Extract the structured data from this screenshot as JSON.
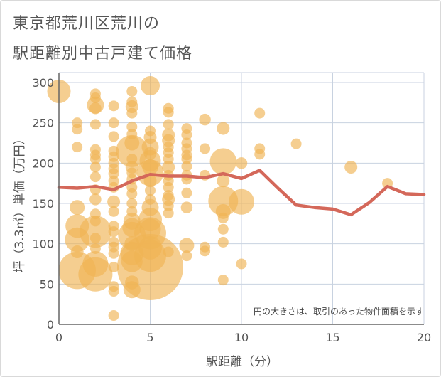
{
  "header": {
    "title_line1": "東京都荒川区荒川の",
    "title_line2": "駅距離別中古戸建て価格"
  },
  "colors": {
    "bubble": "#f0b455",
    "line": "#d4685a",
    "grid": "#c8d2e0",
    "axis": "#666666"
  },
  "chart_data": {
    "type": "scatter",
    "title": "東京都荒川区荒川の駅距離別中古戸建て価格",
    "xlabel": "駅距離（分）",
    "ylabel": "坪（3.3㎡）単価（万円）",
    "xlim": [
      0,
      20
    ],
    "ylim": [
      0,
      310
    ],
    "xticks": [
      0,
      5,
      10,
      15,
      20
    ],
    "yticks": [
      0,
      50,
      100,
      150,
      200,
      250,
      300
    ],
    "grid": true,
    "annotation": "円の大きさは、取引のあった物件面積を示す",
    "bubbles": [
      {
        "x": 0,
        "y": 289,
        "s": 2.2
      },
      {
        "x": 1,
        "y": 250,
        "s": 1
      },
      {
        "x": 1,
        "y": 242,
        "s": 1
      },
      {
        "x": 1,
        "y": 220,
        "s": 1
      },
      {
        "x": 1,
        "y": 145,
        "s": 1.4
      },
      {
        "x": 1,
        "y": 122,
        "s": 2.2
      },
      {
        "x": 1,
        "y": 105,
        "s": 2.3
      },
      {
        "x": 1,
        "y": 90,
        "s": 1.2
      },
      {
        "x": 1,
        "y": 67,
        "s": 3.5
      },
      {
        "x": 2,
        "y": 286,
        "s": 1
      },
      {
        "x": 2,
        "y": 281,
        "s": 1
      },
      {
        "x": 2,
        "y": 272,
        "s": 1.6
      },
      {
        "x": 2,
        "y": 268,
        "s": 1.1
      },
      {
        "x": 2,
        "y": 248,
        "s": 1
      },
      {
        "x": 2,
        "y": 217,
        "s": 1
      },
      {
        "x": 2,
        "y": 210,
        "s": 1
      },
      {
        "x": 2,
        "y": 205,
        "s": 1
      },
      {
        "x": 2,
        "y": 195,
        "s": 1
      },
      {
        "x": 2,
        "y": 183,
        "s": 1
      },
      {
        "x": 2,
        "y": 167,
        "s": 1
      },
      {
        "x": 2,
        "y": 155,
        "s": 1.1
      },
      {
        "x": 2,
        "y": 137,
        "s": 1
      },
      {
        "x": 2,
        "y": 128,
        "s": 1
      },
      {
        "x": 2,
        "y": 115,
        "s": 3.0
      },
      {
        "x": 2,
        "y": 107,
        "s": 1
      },
      {
        "x": 2,
        "y": 94,
        "s": 1
      },
      {
        "x": 2,
        "y": 75,
        "s": 2.4
      },
      {
        "x": 2,
        "y": 62,
        "s": 3.2
      },
      {
        "x": 3,
        "y": 271,
        "s": 1
      },
      {
        "x": 3,
        "y": 250,
        "s": 1
      },
      {
        "x": 3,
        "y": 233,
        "s": 1
      },
      {
        "x": 3,
        "y": 215,
        "s": 1
      },
      {
        "x": 3,
        "y": 208,
        "s": 1
      },
      {
        "x": 3,
        "y": 200,
        "s": 1
      },
      {
        "x": 3,
        "y": 193,
        "s": 1
      },
      {
        "x": 3,
        "y": 187,
        "s": 1
      },
      {
        "x": 3,
        "y": 178,
        "s": 1
      },
      {
        "x": 3,
        "y": 170,
        "s": 1
      },
      {
        "x": 3,
        "y": 152,
        "s": 1.2
      },
      {
        "x": 3,
        "y": 140,
        "s": 1
      },
      {
        "x": 3,
        "y": 122,
        "s": 1
      },
      {
        "x": 3,
        "y": 115,
        "s": 1
      },
      {
        "x": 3,
        "y": 102,
        "s": 1
      },
      {
        "x": 3,
        "y": 96,
        "s": 1
      },
      {
        "x": 3,
        "y": 88,
        "s": 1
      },
      {
        "x": 3,
        "y": 71,
        "s": 1
      },
      {
        "x": 3,
        "y": 47,
        "s": 1
      },
      {
        "x": 3,
        "y": 41,
        "s": 1
      },
      {
        "x": 3,
        "y": 11,
        "s": 1
      },
      {
        "x": 4,
        "y": 289,
        "s": 1
      },
      {
        "x": 4,
        "y": 276,
        "s": 1
      },
      {
        "x": 4,
        "y": 270,
        "s": 1.2
      },
      {
        "x": 4,
        "y": 262,
        "s": 1
      },
      {
        "x": 4,
        "y": 245,
        "s": 1
      },
      {
        "x": 4,
        "y": 236,
        "s": 1
      },
      {
        "x": 4,
        "y": 225,
        "s": 1.4
      },
      {
        "x": 4,
        "y": 215,
        "s": 3.0
      },
      {
        "x": 4,
        "y": 205,
        "s": 1
      },
      {
        "x": 4,
        "y": 195,
        "s": 1.2
      },
      {
        "x": 4,
        "y": 188,
        "s": 1
      },
      {
        "x": 4,
        "y": 180,
        "s": 1
      },
      {
        "x": 4,
        "y": 170,
        "s": 1
      },
      {
        "x": 4,
        "y": 162,
        "s": 1
      },
      {
        "x": 4,
        "y": 150,
        "s": 1
      },
      {
        "x": 4,
        "y": 140,
        "s": 1
      },
      {
        "x": 4,
        "y": 128,
        "s": 1.6
      },
      {
        "x": 4,
        "y": 120,
        "s": 1.8
      },
      {
        "x": 4,
        "y": 110,
        "s": 2.6
      },
      {
        "x": 4,
        "y": 100,
        "s": 1.4
      },
      {
        "x": 4,
        "y": 88,
        "s": 2.2
      },
      {
        "x": 4,
        "y": 78,
        "s": 2.0
      },
      {
        "x": 4,
        "y": 52,
        "s": 1.3
      },
      {
        "x": 4,
        "y": 43,
        "s": 1.6
      },
      {
        "x": 5,
        "y": 296,
        "s": 1.8
      },
      {
        "x": 5,
        "y": 240,
        "s": 1
      },
      {
        "x": 5,
        "y": 232,
        "s": 1.2
      },
      {
        "x": 5,
        "y": 220,
        "s": 1.6
      },
      {
        "x": 5,
        "y": 212,
        "s": 1.2
      },
      {
        "x": 5,
        "y": 203,
        "s": 2.0
      },
      {
        "x": 5,
        "y": 195,
        "s": 1.5
      },
      {
        "x": 5,
        "y": 188,
        "s": 2.5
      },
      {
        "x": 5,
        "y": 178,
        "s": 1.2
      },
      {
        "x": 5,
        "y": 166,
        "s": 1
      },
      {
        "x": 5,
        "y": 155,
        "s": 1
      },
      {
        "x": 5,
        "y": 145,
        "s": 1.6
      },
      {
        "x": 5,
        "y": 130,
        "s": 2.2
      },
      {
        "x": 5,
        "y": 118,
        "s": 2.0
      },
      {
        "x": 5,
        "y": 113,
        "s": 3.0
      },
      {
        "x": 5,
        "y": 95,
        "s": 2.2
      },
      {
        "x": 5,
        "y": 85,
        "s": 3.0
      },
      {
        "x": 5,
        "y": 71,
        "s": 6.2
      },
      {
        "x": 6,
        "y": 268,
        "s": 1
      },
      {
        "x": 6,
        "y": 263,
        "s": 1
      },
      {
        "x": 6,
        "y": 248,
        "s": 1
      },
      {
        "x": 6,
        "y": 235,
        "s": 1.2
      },
      {
        "x": 6,
        "y": 228,
        "s": 1.2
      },
      {
        "x": 6,
        "y": 220,
        "s": 1
      },
      {
        "x": 6,
        "y": 213,
        "s": 1
      },
      {
        "x": 6,
        "y": 205,
        "s": 1
      },
      {
        "x": 6,
        "y": 195,
        "s": 1.2
      },
      {
        "x": 6,
        "y": 185,
        "s": 1
      },
      {
        "x": 6,
        "y": 178,
        "s": 1
      },
      {
        "x": 6,
        "y": 170,
        "s": 1
      },
      {
        "x": 6,
        "y": 160,
        "s": 1
      },
      {
        "x": 6,
        "y": 155,
        "s": 1.2
      },
      {
        "x": 6,
        "y": 147,
        "s": 1
      },
      {
        "x": 6,
        "y": 138,
        "s": 1
      },
      {
        "x": 6,
        "y": 90,
        "s": 1
      },
      {
        "x": 7,
        "y": 243,
        "s": 1
      },
      {
        "x": 7,
        "y": 235,
        "s": 1
      },
      {
        "x": 7,
        "y": 225,
        "s": 1
      },
      {
        "x": 7,
        "y": 218,
        "s": 1
      },
      {
        "x": 7,
        "y": 210,
        "s": 1
      },
      {
        "x": 7,
        "y": 205,
        "s": 1
      },
      {
        "x": 7,
        "y": 196,
        "s": 1
      },
      {
        "x": 7,
        "y": 185,
        "s": 1
      },
      {
        "x": 7,
        "y": 180,
        "s": 1
      },
      {
        "x": 7,
        "y": 163,
        "s": 1
      },
      {
        "x": 7,
        "y": 145,
        "s": 1.1
      },
      {
        "x": 7,
        "y": 98,
        "s": 1.4
      },
      {
        "x": 7,
        "y": 85,
        "s": 1
      },
      {
        "x": 8,
        "y": 254,
        "s": 1.1
      },
      {
        "x": 8,
        "y": 218,
        "s": 1
      },
      {
        "x": 8,
        "y": 185,
        "s": 1
      },
      {
        "x": 8,
        "y": 96,
        "s": 1
      },
      {
        "x": 8,
        "y": 91,
        "s": 1
      },
      {
        "x": 9,
        "y": 243,
        "s": 1.2
      },
      {
        "x": 9,
        "y": 202,
        "s": 2.5
      },
      {
        "x": 9,
        "y": 178,
        "s": 1.2
      },
      {
        "x": 9,
        "y": 153,
        "s": 2.8
      },
      {
        "x": 9,
        "y": 140,
        "s": 1.4
      },
      {
        "x": 9,
        "y": 132,
        "s": 1
      },
      {
        "x": 9,
        "y": 118,
        "s": 1
      },
      {
        "x": 9,
        "y": 102,
        "s": 1
      },
      {
        "x": 9,
        "y": 55,
        "s": 1
      },
      {
        "x": 10,
        "y": 200,
        "s": 1.1
      },
      {
        "x": 10,
        "y": 152,
        "s": 2.4
      },
      {
        "x": 10,
        "y": 75,
        "s": 1
      },
      {
        "x": 11,
        "y": 262,
        "s": 1
      },
      {
        "x": 11,
        "y": 218,
        "s": 1
      },
      {
        "x": 11,
        "y": 211,
        "s": 1
      },
      {
        "x": 13,
        "y": 224,
        "s": 1
      },
      {
        "x": 16,
        "y": 195,
        "s": 1.2
      },
      {
        "x": 18,
        "y": 175,
        "s": 1
      }
    ],
    "series": [
      {
        "x": [
          0,
          1,
          2,
          3,
          4,
          5,
          6,
          7,
          8,
          9,
          10,
          11,
          12,
          13,
          14,
          15,
          16,
          17,
          18,
          19,
          20
        ],
        "values": [
          170,
          169,
          171,
          167,
          178,
          186,
          184,
          184,
          182,
          187,
          181,
          191,
          169,
          148,
          145,
          143,
          136,
          151,
          171,
          162,
          161
        ]
      }
    ]
  }
}
